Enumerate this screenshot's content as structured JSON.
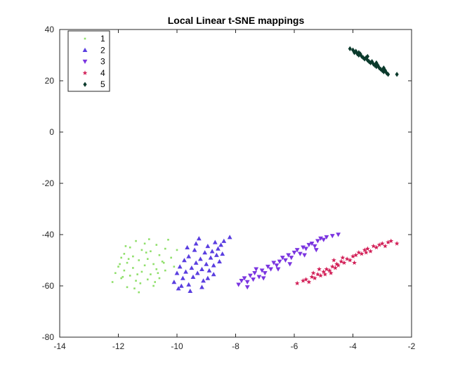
{
  "chart_data": {
    "type": "scatter",
    "title": "Local Linear t-SNE mappings",
    "xlabel": "",
    "ylabel": "",
    "xlim": [
      -14,
      -2
    ],
    "ylim": [
      -80,
      40
    ],
    "xticks": [
      -14,
      -12,
      -10,
      -8,
      -6,
      -4,
      -2
    ],
    "yticks": [
      -80,
      -60,
      -40,
      -20,
      0,
      20,
      40
    ],
    "grid": false,
    "legend_position": "top-left",
    "series": [
      {
        "name": "1",
        "marker": "point",
        "color": "#8fdf6a",
        "points": [
          [
            -12.2,
            -58.5
          ],
          [
            -12.1,
            -55.0
          ],
          [
            -12.0,
            -52.5
          ],
          [
            -11.9,
            -57.0
          ],
          [
            -11.9,
            -49.0
          ],
          [
            -11.8,
            -54.0
          ],
          [
            -11.8,
            -47.5
          ],
          [
            -11.7,
            -60.5
          ],
          [
            -11.7,
            -51.0
          ],
          [
            -11.6,
            -45.0
          ],
          [
            -11.6,
            -56.0
          ],
          [
            -11.5,
            -53.0
          ],
          [
            -11.5,
            -48.5
          ],
          [
            -11.4,
            -42.5
          ],
          [
            -11.4,
            -58.0
          ],
          [
            -11.3,
            -50.0
          ],
          [
            -11.3,
            -62.5
          ],
          [
            -11.2,
            -46.0
          ],
          [
            -11.2,
            -54.5
          ],
          [
            -11.1,
            -52.0
          ],
          [
            -11.1,
            -43.5
          ],
          [
            -11.0,
            -57.5
          ],
          [
            -11.0,
            -49.5
          ],
          [
            -10.9,
            -55.5
          ],
          [
            -10.9,
            -46.5
          ],
          [
            -10.8,
            -51.5
          ],
          [
            -10.8,
            -60.0
          ],
          [
            -10.7,
            -44.0
          ],
          [
            -10.7,
            -53.5
          ],
          [
            -10.6,
            -48.0
          ],
          [
            -10.6,
            -57.0
          ],
          [
            -10.5,
            -50.5
          ],
          [
            -10.4,
            -45.5
          ],
          [
            -10.4,
            -54.0
          ],
          [
            -10.3,
            -42.0
          ],
          [
            -10.2,
            -49.0
          ],
          [
            -10.1,
            -52.5
          ],
          [
            -10.0,
            -46.0
          ],
          [
            -11.95,
            -51.5
          ],
          [
            -11.65,
            -49.5
          ],
          [
            -11.35,
            -55.5
          ],
          [
            -11.05,
            -47.0
          ],
          [
            -10.75,
            -58.5
          ],
          [
            -10.45,
            -51.0
          ],
          [
            -11.75,
            -44.5
          ],
          [
            -11.25,
            -59.0
          ],
          [
            -10.95,
            -41.8
          ],
          [
            -10.65,
            -55.0
          ],
          [
            -11.45,
            -61.0
          ],
          [
            -11.85,
            -56.5
          ]
        ]
      },
      {
        "name": "2",
        "marker": "triangle-up",
        "color": "#5a3ee0",
        "points": [
          [
            -10.1,
            -58.5
          ],
          [
            -10.0,
            -55.0
          ],
          [
            -9.95,
            -61.0
          ],
          [
            -9.9,
            -52.5
          ],
          [
            -9.8,
            -57.0
          ],
          [
            -9.75,
            -50.0
          ],
          [
            -9.7,
            -54.5
          ],
          [
            -9.6,
            -59.5
          ],
          [
            -9.6,
            -48.5
          ],
          [
            -9.5,
            -53.0
          ],
          [
            -9.45,
            -56.5
          ],
          [
            -9.4,
            -46.0
          ],
          [
            -9.35,
            -51.0
          ],
          [
            -9.3,
            -55.0
          ],
          [
            -9.25,
            -41.5
          ],
          [
            -9.2,
            -49.5
          ],
          [
            -9.15,
            -53.5
          ],
          [
            -9.1,
            -58.0
          ],
          [
            -9.05,
            -47.0
          ],
          [
            -9.0,
            -51.5
          ],
          [
            -8.95,
            -44.5
          ],
          [
            -8.9,
            -54.0
          ],
          [
            -8.85,
            -49.0
          ],
          [
            -8.8,
            -46.5
          ],
          [
            -8.75,
            -52.0
          ],
          [
            -8.7,
            -43.0
          ],
          [
            -8.65,
            -48.0
          ],
          [
            -8.6,
            -45.5
          ],
          [
            -8.55,
            -50.5
          ],
          [
            -8.5,
            -44.0
          ],
          [
            -8.45,
            -47.5
          ],
          [
            -8.4,
            -42.5
          ],
          [
            -8.2,
            -41.0
          ],
          [
            -9.55,
            -62.0
          ],
          [
            -9.85,
            -60.0
          ],
          [
            -9.65,
            -45.0
          ],
          [
            -9.15,
            -60.5
          ],
          [
            -8.95,
            -57.0
          ],
          [
            -9.35,
            -43.5
          ],
          [
            -8.75,
            -55.5
          ]
        ]
      },
      {
        "name": "3",
        "marker": "triangle-down",
        "color": "#7b35e0",
        "points": [
          [
            -7.9,
            -59.5
          ],
          [
            -7.8,
            -58.0
          ],
          [
            -7.7,
            -57.0
          ],
          [
            -7.6,
            -60.5
          ],
          [
            -7.5,
            -56.0
          ],
          [
            -7.4,
            -57.5
          ],
          [
            -7.35,
            -55.0
          ],
          [
            -7.3,
            -53.5
          ],
          [
            -7.2,
            -56.5
          ],
          [
            -7.1,
            -54.0
          ],
          [
            -7.0,
            -55.0
          ],
          [
            -6.9,
            -52.5
          ],
          [
            -6.8,
            -53.5
          ],
          [
            -6.7,
            -51.0
          ],
          [
            -6.6,
            -52.0
          ],
          [
            -6.5,
            -50.5
          ],
          [
            -6.4,
            -49.0
          ],
          [
            -6.3,
            -50.0
          ],
          [
            -6.2,
            -48.0
          ],
          [
            -6.1,
            -49.0
          ],
          [
            -6.0,
            -47.0
          ],
          [
            -5.9,
            -46.0
          ],
          [
            -5.8,
            -47.5
          ],
          [
            -5.7,
            -45.0
          ],
          [
            -5.6,
            -45.5
          ],
          [
            -5.5,
            -44.0
          ],
          [
            -5.4,
            -43.5
          ],
          [
            -5.3,
            -44.5
          ],
          [
            -5.2,
            -42.5
          ],
          [
            -5.1,
            -41.5
          ],
          [
            -5.0,
            -42.0
          ],
          [
            -4.9,
            -41.0
          ],
          [
            -4.7,
            -40.5
          ],
          [
            -4.5,
            -40.0
          ],
          [
            -7.6,
            -58.5
          ],
          [
            -7.05,
            -57.0
          ],
          [
            -6.55,
            -53.5
          ],
          [
            -6.15,
            -51.5
          ],
          [
            -5.65,
            -48.0
          ],
          [
            -5.25,
            -46.0
          ]
        ]
      },
      {
        "name": "4",
        "marker": "star",
        "color": "#d21f57",
        "points": [
          [
            -5.9,
            -59.0
          ],
          [
            -5.7,
            -58.0
          ],
          [
            -5.6,
            -57.5
          ],
          [
            -5.5,
            -58.5
          ],
          [
            -5.4,
            -56.5
          ],
          [
            -5.3,
            -57.0
          ],
          [
            -5.2,
            -55.5
          ],
          [
            -5.1,
            -56.0
          ],
          [
            -5.0,
            -54.5
          ],
          [
            -4.95,
            -55.5
          ],
          [
            -4.9,
            -53.5
          ],
          [
            -4.8,
            -54.0
          ],
          [
            -4.7,
            -52.5
          ],
          [
            -4.6,
            -53.0
          ],
          [
            -4.55,
            -51.5
          ],
          [
            -4.5,
            -52.0
          ],
          [
            -4.4,
            -50.5
          ],
          [
            -4.3,
            -51.0
          ],
          [
            -4.2,
            -49.5
          ],
          [
            -4.1,
            -50.0
          ],
          [
            -4.0,
            -48.5
          ],
          [
            -3.9,
            -48.0
          ],
          [
            -3.8,
            -47.0
          ],
          [
            -3.7,
            -47.5
          ],
          [
            -3.6,
            -46.0
          ],
          [
            -3.5,
            -45.5
          ],
          [
            -3.4,
            -46.5
          ],
          [
            -3.3,
            -44.5
          ],
          [
            -3.2,
            -45.0
          ],
          [
            -3.1,
            -44.0
          ],
          [
            -3.0,
            -43.5
          ],
          [
            -2.9,
            -44.5
          ],
          [
            -2.8,
            -43.0
          ],
          [
            -2.7,
            -42.5
          ],
          [
            -2.5,
            -43.5
          ],
          [
            -5.15,
            -53.5
          ],
          [
            -4.75,
            -55.0
          ],
          [
            -4.35,
            -49.0
          ],
          [
            -3.95,
            -51.0
          ],
          [
            -3.55,
            -47.0
          ],
          [
            -4.65,
            -50.0
          ],
          [
            -5.35,
            -55.0
          ]
        ]
      },
      {
        "name": "5",
        "marker": "diamond",
        "color": "#0b3a2c",
        "points": [
          [
            -4.1,
            32.5
          ],
          [
            -4.0,
            32.0
          ],
          [
            -3.95,
            31.0
          ],
          [
            -3.9,
            31.5
          ],
          [
            -3.85,
            30.5
          ],
          [
            -3.8,
            30.0
          ],
          [
            -3.75,
            30.5
          ],
          [
            -3.7,
            29.5
          ],
          [
            -3.65,
            29.0
          ],
          [
            -3.6,
            28.5
          ],
          [
            -3.55,
            29.0
          ],
          [
            -3.5,
            28.0
          ],
          [
            -3.45,
            27.5
          ],
          [
            -3.4,
            27.0
          ],
          [
            -3.35,
            27.5
          ],
          [
            -3.3,
            26.5
          ],
          [
            -3.25,
            26.0
          ],
          [
            -3.2,
            25.5
          ],
          [
            -3.15,
            26.0
          ],
          [
            -3.1,
            25.0
          ],
          [
            -3.05,
            24.5
          ],
          [
            -3.0,
            24.0
          ],
          [
            -2.95,
            23.5
          ],
          [
            -2.9,
            24.0
          ],
          [
            -2.85,
            23.0
          ],
          [
            -2.8,
            22.5
          ],
          [
            -2.5,
            22.5
          ],
          [
            -3.8,
            31.0
          ],
          [
            -3.5,
            29.5
          ],
          [
            -3.2,
            27.0
          ],
          [
            -2.95,
            25.0
          ]
        ]
      }
    ]
  }
}
